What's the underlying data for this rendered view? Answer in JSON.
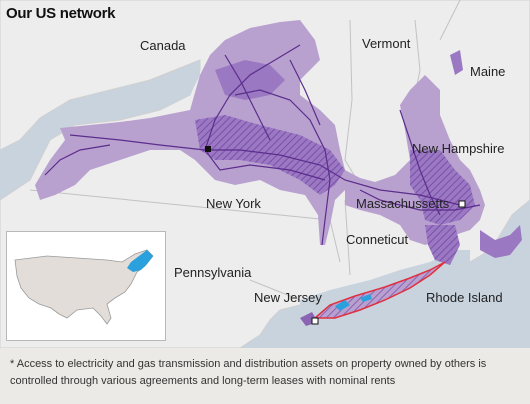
{
  "title": "Our US network",
  "labels": {
    "canada": "Canada",
    "vermont": "Vermont",
    "maine": "Maine",
    "new_hampshire": "New Hampshire",
    "new_york": "New York",
    "massachusetts": "Massachussetts",
    "connecticut": "Conneticut",
    "pennsylvania": "Pennsylvania",
    "new_jersey": "New Jersey",
    "rhode_island": "Rhode Island"
  },
  "footnote": "* Access to electricity and gas transmission and distribution assets on property owned by others is controlled through various agreements and long-term leases with nominal rents",
  "colors": {
    "water": "#c9d3de",
    "land": "#ededed",
    "service_area": "#b9a1cf",
    "service_dark": "#8a63b3",
    "network_lines": "#5b2d8c",
    "long_island_line": "#e03040",
    "inset_highlight": "#2aa0dc"
  },
  "icons": [
    "capital-marker-icon",
    "city-marker-icon"
  ]
}
